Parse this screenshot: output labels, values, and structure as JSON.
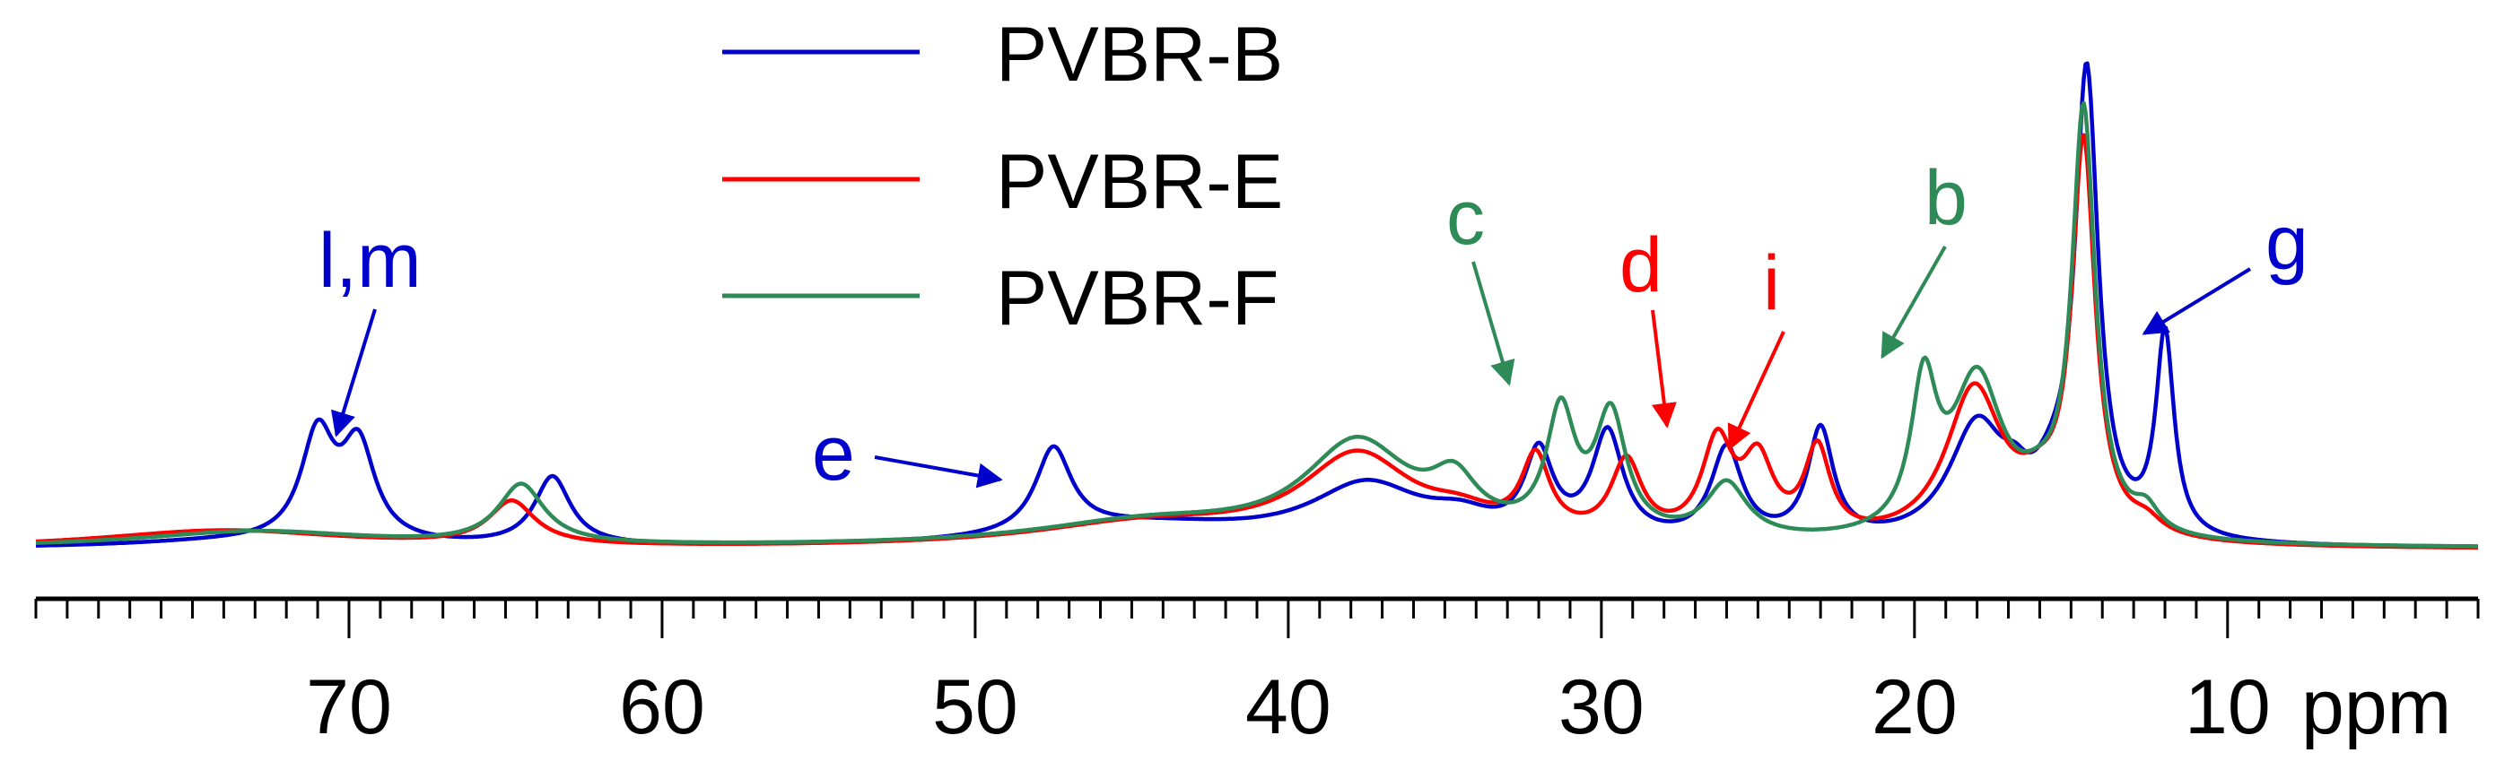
{
  "chart_data": {
    "type": "line",
    "title": "",
    "xlabel": "ppm",
    "ylabel": "",
    "x_range": [
      80,
      2
    ],
    "x_reversed": true,
    "major_ticks": [
      70,
      60,
      50,
      40,
      30,
      20,
      10
    ],
    "major_tick_labels": [
      "70",
      "60",
      "50",
      "40",
      "30",
      "20",
      "10"
    ],
    "minor_tick_step": 1,
    "unit_label": "ppm",
    "ylim": [
      0,
      100
    ],
    "legend": {
      "placement": "top-center"
    },
    "series": [
      {
        "name": "PVBR-B",
        "color": "#0000cc",
        "baseline": 0.5,
        "peaks": [
          {
            "x": 74.0,
            "h": 1.2,
            "w": 4.0
          },
          {
            "x": 71.0,
            "h": 23.0,
            "w": 0.65
          },
          {
            "x": 69.7,
            "h": 20.5,
            "w": 0.65
          },
          {
            "x": 63.5,
            "h": 15.0,
            "w": 0.7
          },
          {
            "x": 47.5,
            "h": 18.5,
            "w": 0.7
          },
          {
            "x": 44.5,
            "h": 4.5,
            "w": 4.5
          },
          {
            "x": 37.5,
            "h": 12.5,
            "w": 2.2
          },
          {
            "x": 34.5,
            "h": 4.0,
            "w": 1.3
          },
          {
            "x": 32.0,
            "h": 18.0,
            "w": 0.55
          },
          {
            "x": 29.8,
            "h": 23.0,
            "w": 0.6
          },
          {
            "x": 26.0,
            "h": 20.0,
            "w": 0.6
          },
          {
            "x": 23.0,
            "h": 24.0,
            "w": 0.5
          },
          {
            "x": 18.0,
            "h": 25.0,
            "w": 1.1
          },
          {
            "x": 16.8,
            "h": 5.0,
            "w": 0.5
          },
          {
            "x": 14.5,
            "h": 100.0,
            "w": 0.45
          },
          {
            "x": 15.6,
            "h": 8.0,
            "w": 0.8
          },
          {
            "x": 12.0,
            "h": 44.0,
            "w": 0.35
          }
        ]
      },
      {
        "name": "PVBR-E",
        "color": "#ff0000",
        "baseline": 0.3,
        "peaks": [
          {
            "x": 74.0,
            "h": 4.0,
            "w": 5.0
          },
          {
            "x": 64.8,
            "h": 9.5,
            "w": 0.9
          },
          {
            "x": 44.5,
            "h": 5.0,
            "w": 4.5
          },
          {
            "x": 37.8,
            "h": 19.0,
            "w": 2.2
          },
          {
            "x": 34.5,
            "h": 4.0,
            "w": 1.4
          },
          {
            "x": 32.1,
            "h": 16.5,
            "w": 0.55
          },
          {
            "x": 29.2,
            "h": 16.5,
            "w": 0.6
          },
          {
            "x": 26.3,
            "h": 20.5,
            "w": 0.6
          },
          {
            "x": 25.0,
            "h": 16.0,
            "w": 0.6
          },
          {
            "x": 23.1,
            "h": 19.0,
            "w": 0.5
          },
          {
            "x": 18.1,
            "h": 33.0,
            "w": 1.1
          },
          {
            "x": 14.6,
            "h": 85.0,
            "w": 0.45
          },
          {
            "x": 16.0,
            "h": 7.0,
            "w": 0.9
          },
          {
            "x": 12.6,
            "h": 3.0,
            "w": 0.6
          }
        ]
      },
      {
        "name": "PVBR-F",
        "color": "#2e8b57",
        "baseline": 0.6,
        "peaks": [
          {
            "x": 73.0,
            "h": 3.5,
            "w": 4.5
          },
          {
            "x": 64.5,
            "h": 13.0,
            "w": 0.9
          },
          {
            "x": 44.5,
            "h": 5.0,
            "w": 4.5
          },
          {
            "x": 37.8,
            "h": 21.5,
            "w": 2.1
          },
          {
            "x": 34.7,
            "h": 10.0,
            "w": 0.9
          },
          {
            "x": 31.3,
            "h": 26.0,
            "w": 0.55
          },
          {
            "x": 29.7,
            "h": 26.0,
            "w": 0.6
          },
          {
            "x": 26.0,
            "h": 12.0,
            "w": 0.8
          },
          {
            "x": 19.7,
            "h": 31.0,
            "w": 0.5
          },
          {
            "x": 18.0,
            "h": 34.0,
            "w": 1.0
          },
          {
            "x": 14.6,
            "h": 92.0,
            "w": 0.45
          },
          {
            "x": 16.0,
            "h": 6.0,
            "w": 0.9
          },
          {
            "x": 12.6,
            "h": 5.0,
            "w": 0.5
          }
        ]
      }
    ],
    "annotations": [
      {
        "label": "l,m",
        "color": "#0000cc",
        "target_x": 70.5
      },
      {
        "label": "e",
        "color": "#0000cc",
        "target_x": 48.3
      },
      {
        "label": "c",
        "color": "#2e8b57",
        "target_x": 31.6
      },
      {
        "label": "d",
        "color": "#ff0000",
        "target_x": 26.5
      },
      {
        "label": "i",
        "color": "#ff0000",
        "target_x": 25.1
      },
      {
        "label": "b",
        "color": "#2e8b57",
        "target_x": 19.8
      },
      {
        "label": "g",
        "color": "#0000cc",
        "target_x": 11.4
      }
    ]
  }
}
